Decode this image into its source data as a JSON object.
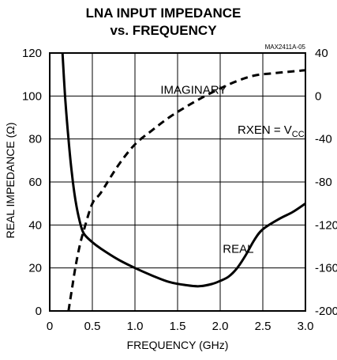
{
  "chart_data": {
    "type": "line",
    "title_line1": "LNA INPUT IMPEDANCE",
    "title_line2": "vs. FREQUENCY",
    "part_number": "MAX2411A-05",
    "xlabel": "FREQUENCY (GHz)",
    "ylabel": "REAL IMPEDANCE (Ω)",
    "xlim": [
      0,
      3.0
    ],
    "ylim": [
      0,
      120
    ],
    "y2lim": [
      -200,
      40
    ],
    "x_ticks": [
      "0",
      "0.5",
      "1.0",
      "1.5",
      "2.0",
      "2.5",
      "3.0"
    ],
    "x_tick_values": [
      0,
      0.5,
      1.0,
      1.5,
      2.0,
      2.5,
      3.0
    ],
    "y_ticks": [
      "0",
      "20",
      "40",
      "60",
      "80",
      "100",
      "120"
    ],
    "y_tick_values": [
      0,
      20,
      40,
      60,
      80,
      100,
      120
    ],
    "y2_ticks": [
      "40",
      "0",
      "-40",
      "-80",
      "-120",
      "-160",
      "-200"
    ],
    "y2_tick_values": [
      40,
      0,
      -40,
      -80,
      -120,
      -160,
      -200
    ],
    "grid": true,
    "condition": {
      "prefix": "RXEN = V",
      "subscript": "CC"
    },
    "series": [
      {
        "name": "REAL",
        "axis": "left",
        "style": "solid",
        "x": [
          0.15,
          0.18,
          0.22,
          0.26,
          0.3,
          0.35,
          0.4,
          0.5,
          0.6,
          0.8,
          1.0,
          1.2,
          1.4,
          1.6,
          1.75,
          1.9,
          2.0,
          2.1,
          2.2,
          2.3,
          2.4,
          2.5,
          2.7,
          2.85,
          3.0
        ],
        "values": [
          120,
          100,
          80,
          64,
          52,
          42,
          36,
          32,
          29,
          24,
          20,
          16.5,
          13.5,
          12,
          11.5,
          12.5,
          14,
          16,
          20,
          26,
          33,
          38,
          43,
          46,
          50
        ]
      },
      {
        "name": "IMAGINARY",
        "axis": "right",
        "style": "dashed",
        "x": [
          0.22,
          0.26,
          0.3,
          0.35,
          0.4,
          0.5,
          0.6,
          0.8,
          1.0,
          1.2,
          1.4,
          1.6,
          1.8,
          2.0,
          2.2,
          2.4,
          2.6,
          2.8,
          3.0
        ],
        "values": [
          -200,
          -180,
          -160,
          -140,
          -125,
          -100,
          -90,
          -65,
          -45,
          -32,
          -20,
          -10,
          -1,
          7,
          14,
          19,
          21,
          22.5,
          24
        ]
      }
    ],
    "annotations": [
      {
        "text": "IMAGINARY",
        "x": 1.3,
        "y": 101
      },
      {
        "text": "REAL",
        "x": 2.03,
        "y": 27
      }
    ]
  }
}
